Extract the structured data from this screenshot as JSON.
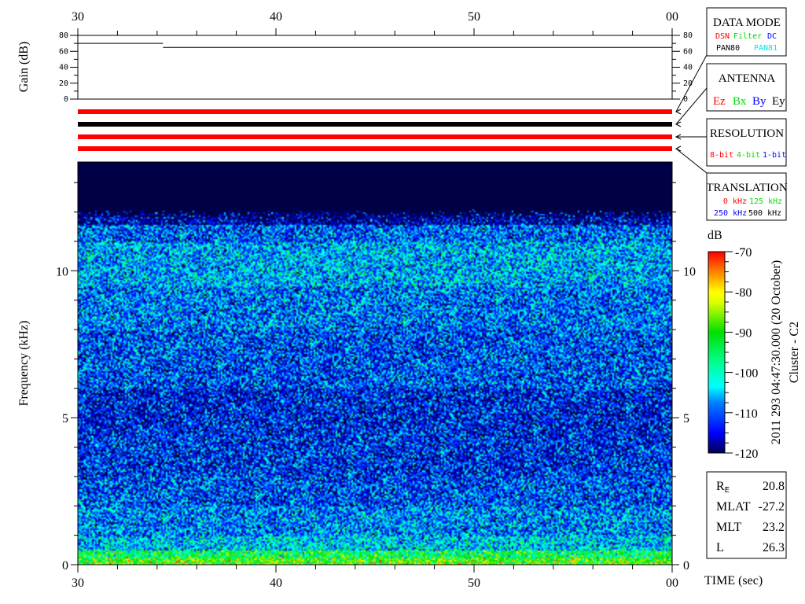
{
  "chart_data": {
    "type": "heatmap",
    "xlabel": "TIME (sec)",
    "ylabel": "Frequency (kHz)",
    "xlim": [
      30,
      60
    ],
    "x_ticks": [
      "30",
      "40",
      "50",
      "00"
    ],
    "ylim": [
      0,
      13.7
    ],
    "y_ticks": [
      "0",
      "5",
      "10"
    ],
    "colorbar": {
      "label": "dB",
      "range": [
        -120,
        -70
      ],
      "ticks": [
        "-70",
        "-80",
        "-90",
        "-100",
        "-110",
        "-120"
      ],
      "colormap": "jet"
    },
    "gain_panel": {
      "ylabel": "Gain (dB)",
      "ylim": [
        0,
        80
      ],
      "y_ticks": [
        "80",
        "60",
        "40",
        "20",
        "0"
      ],
      "series": [
        {
          "x": [
            30,
            34.3
          ],
          "y": [
            70,
            70
          ]
        },
        {
          "x": [
            34.3,
            60
          ],
          "y": [
            65,
            65
          ]
        }
      ]
    },
    "status_bars": [
      {
        "panel": "DATA MODE",
        "color": "#ff0000"
      },
      {
        "panel": "ANTENNA",
        "color": "#000000"
      },
      {
        "panel": "RESOLUTION",
        "color": "#ff0000"
      },
      {
        "panel": "TRANSLATION",
        "color": "#ff0000"
      }
    ]
  },
  "legend_panels": {
    "data_mode": {
      "title": "DATA MODE",
      "items": [
        {
          "text": "DSN",
          "color": "#ff0000"
        },
        {
          "text": "Filter",
          "color": "#00dd00"
        },
        {
          "text": "DC",
          "color": "#0000ff"
        },
        {
          "text": "PAN80",
          "color": "#000000"
        },
        {
          "text": "PAN81",
          "color": "#00e5e5"
        }
      ]
    },
    "antenna": {
      "title": "ANTENNA",
      "items": [
        {
          "text": "Ez",
          "color": "#ff0000"
        },
        {
          "text": "Bx",
          "color": "#00dd00"
        },
        {
          "text": "By",
          "color": "#0000ff"
        },
        {
          "text": "Ey",
          "color": "#000000"
        }
      ]
    },
    "resolution": {
      "title": "RESOLUTION",
      "items": [
        {
          "text": "8-bit",
          "color": "#ff0000"
        },
        {
          "text": "4-bit",
          "color": "#00dd00"
        },
        {
          "text": "1-bit",
          "color": "#0000ff"
        }
      ]
    },
    "translation": {
      "title": "TRANSLATION",
      "items": [
        {
          "text": "0 kHz",
          "color": "#ff0000"
        },
        {
          "text": "125 kHz",
          "color": "#00dd00"
        },
        {
          "text": "250 kHz",
          "color": "#0000ff"
        },
        {
          "text": "500 kHz",
          "color": "#000000"
        }
      ]
    }
  },
  "timestamp": "2011 293 04:47:30.000 (20 October)",
  "spacecraft": "Cluster - C2",
  "ephemeris": [
    {
      "label": "R",
      "sub": "E",
      "value": "20.8"
    },
    {
      "label": "MLAT",
      "sub": "",
      "value": "-27.2"
    },
    {
      "label": "MLT",
      "sub": "",
      "value": "23.2"
    },
    {
      "label": "L",
      "sub": "",
      "value": "26.3"
    }
  ]
}
